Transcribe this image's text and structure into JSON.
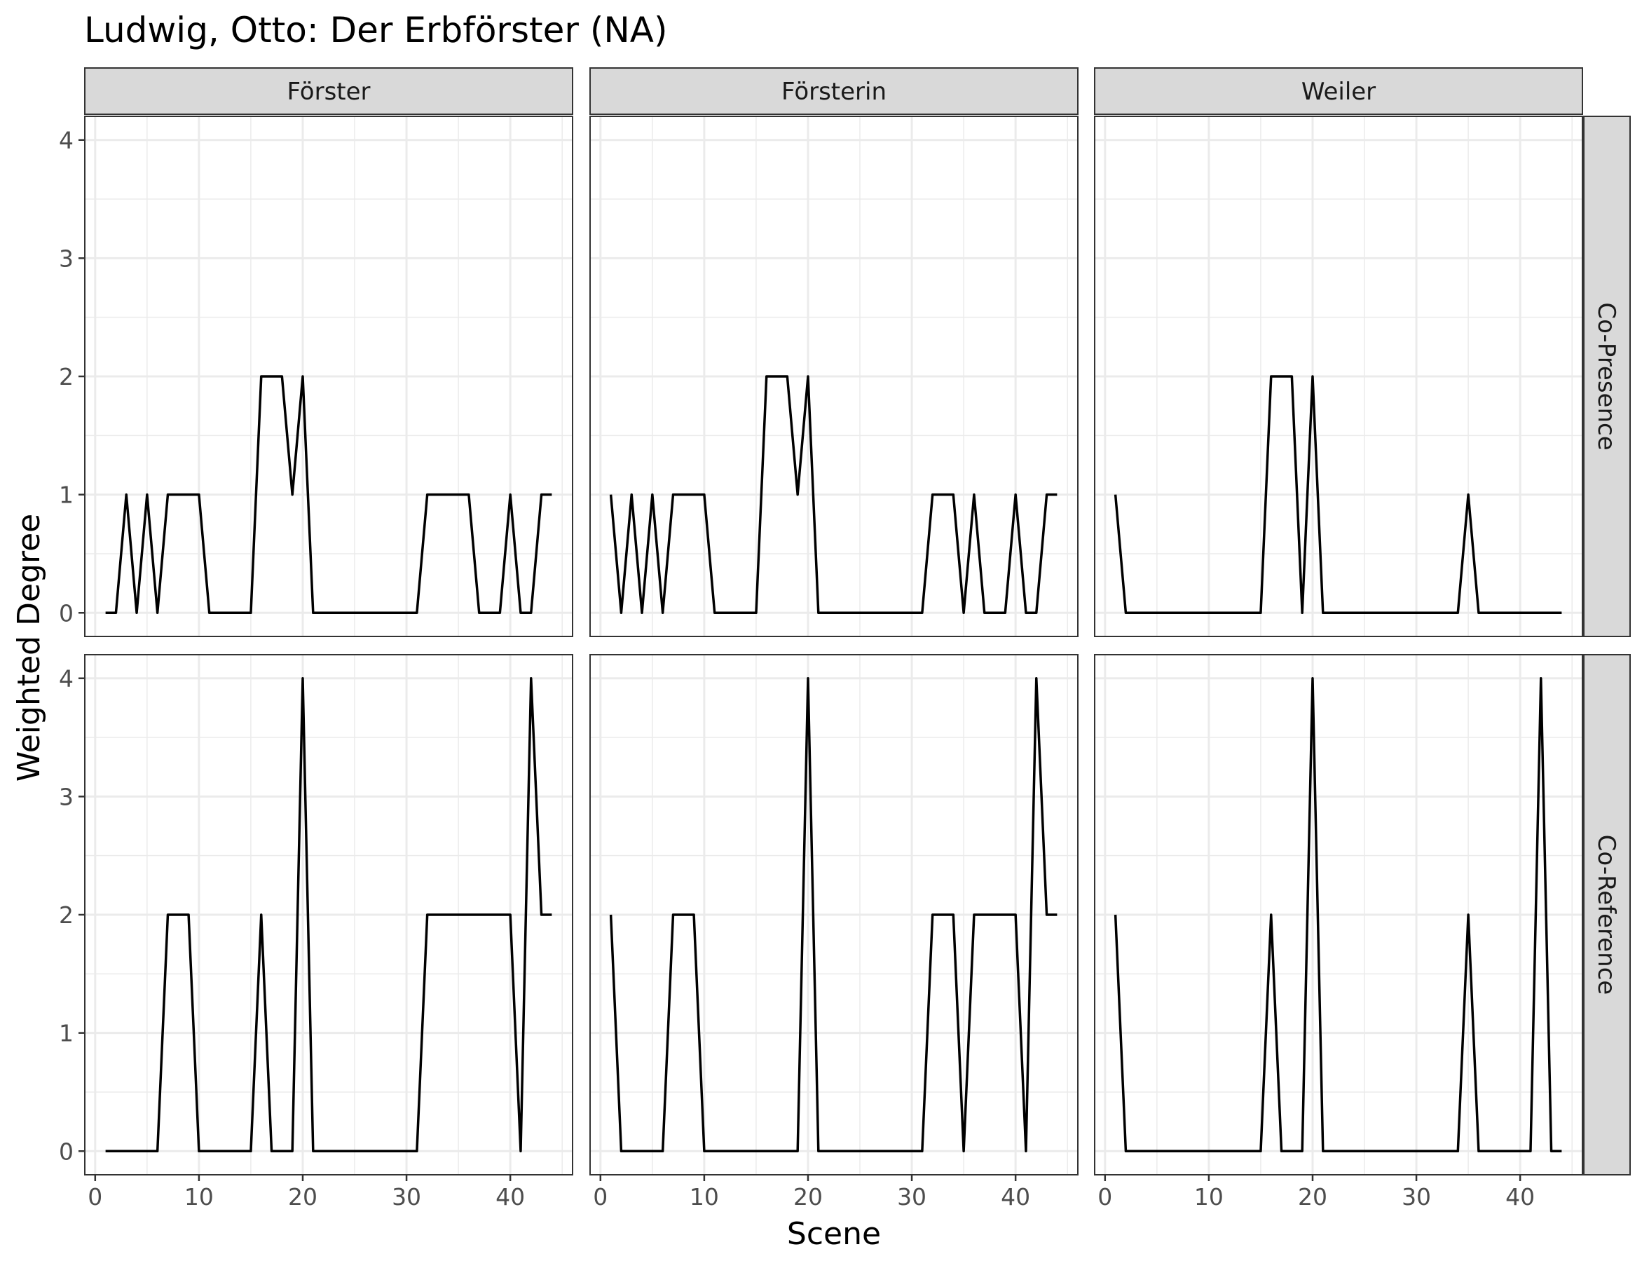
{
  "chart_data": {
    "type": "line",
    "title": "Ludwig, Otto: Der Erbförster (NA)",
    "xlabel": "Scene",
    "ylabel": "Weighted Degree",
    "xlim": [
      -1,
      46
    ],
    "ylim": [
      -0.2,
      4.2
    ],
    "x_ticks": [
      0,
      10,
      20,
      30,
      40
    ],
    "y_ticks": [
      0,
      1,
      2,
      3,
      4
    ],
    "grid": true,
    "facet_columns": [
      "Förster",
      "Försterin",
      "Weiler"
    ],
    "facet_rows": [
      "Co-Presence",
      "Co-Reference"
    ],
    "x": [
      1,
      2,
      3,
      4,
      5,
      6,
      7,
      8,
      9,
      10,
      11,
      12,
      13,
      14,
      15,
      16,
      17,
      18,
      19,
      20,
      21,
      22,
      23,
      24,
      25,
      26,
      27,
      28,
      29,
      30,
      31,
      32,
      33,
      34,
      35,
      36,
      37,
      38,
      39,
      40,
      41,
      42,
      43,
      44
    ],
    "panels": [
      {
        "row": "Co-Presence",
        "column": "Förster",
        "values": [
          0,
          0,
          1,
          0,
          1,
          0,
          1,
          1,
          1,
          1,
          0,
          0,
          0,
          0,
          0,
          2,
          2,
          2,
          1,
          2,
          0,
          0,
          0,
          0,
          0,
          0,
          0,
          0,
          0,
          0,
          0,
          1,
          1,
          1,
          1,
          1,
          0,
          0,
          0,
          1,
          0,
          0,
          1,
          1
        ]
      },
      {
        "row": "Co-Presence",
        "column": "Försterin",
        "values": [
          1,
          0,
          1,
          0,
          1,
          0,
          1,
          1,
          1,
          1,
          0,
          0,
          0,
          0,
          0,
          2,
          2,
          2,
          1,
          2,
          0,
          0,
          0,
          0,
          0,
          0,
          0,
          0,
          0,
          0,
          0,
          1,
          1,
          1,
          0,
          1,
          0,
          0,
          0,
          1,
          0,
          0,
          1,
          1
        ]
      },
      {
        "row": "Co-Presence",
        "column": "Weiler",
        "values": [
          1,
          0,
          0,
          0,
          0,
          0,
          0,
          0,
          0,
          0,
          0,
          0,
          0,
          0,
          0,
          2,
          2,
          2,
          0,
          2,
          0,
          0,
          0,
          0,
          0,
          0,
          0,
          0,
          0,
          0,
          0,
          0,
          0,
          0,
          1,
          0,
          0,
          0,
          0,
          0,
          0,
          0,
          0,
          0
        ]
      },
      {
        "row": "Co-Reference",
        "column": "Förster",
        "values": [
          0,
          0,
          0,
          0,
          0,
          0,
          2,
          2,
          2,
          0,
          0,
          0,
          0,
          0,
          0,
          2,
          0,
          0,
          0,
          4,
          0,
          0,
          0,
          0,
          0,
          0,
          0,
          0,
          0,
          0,
          0,
          2,
          2,
          2,
          2,
          2,
          2,
          2,
          2,
          2,
          0,
          4,
          2,
          2
        ]
      },
      {
        "row": "Co-Reference",
        "column": "Försterin",
        "values": [
          2,
          0,
          0,
          0,
          0,
          0,
          2,
          2,
          2,
          0,
          0,
          0,
          0,
          0,
          0,
          0,
          0,
          0,
          0,
          4,
          0,
          0,
          0,
          0,
          0,
          0,
          0,
          0,
          0,
          0,
          0,
          2,
          2,
          2,
          0,
          2,
          2,
          2,
          2,
          2,
          0,
          4,
          2,
          2
        ]
      },
      {
        "row": "Co-Reference",
        "column": "Weiler",
        "values": [
          2,
          0,
          0,
          0,
          0,
          0,
          0,
          0,
          0,
          0,
          0,
          0,
          0,
          0,
          0,
          2,
          0,
          0,
          0,
          4,
          0,
          0,
          0,
          0,
          0,
          0,
          0,
          0,
          0,
          0,
          0,
          0,
          0,
          0,
          2,
          0,
          0,
          0,
          0,
          0,
          0,
          4,
          0,
          0
        ]
      }
    ]
  }
}
